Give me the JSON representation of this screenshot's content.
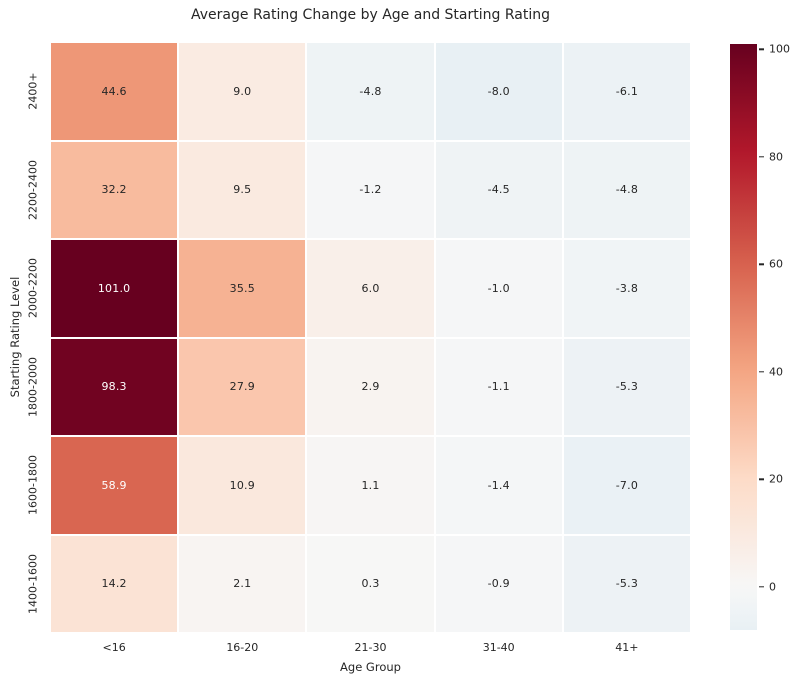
{
  "chart_data": {
    "type": "heatmap",
    "title": "Average Rating Change by Age and Starting Rating",
    "xlabel": "Age Group",
    "ylabel": "Starting Rating Level",
    "x_categories": [
      "<16",
      "16-20",
      "21-30",
      "31-40",
      "41+"
    ],
    "y_categories": [
      "2400+",
      "2200-2400",
      "2000-2200",
      "1800-2000",
      "1600-1800",
      "1400-1600"
    ],
    "values": [
      [
        44.6,
        9.0,
        -4.8,
        -8.0,
        -6.1
      ],
      [
        32.2,
        9.5,
        -1.2,
        -4.5,
        -4.8
      ],
      [
        101.0,
        35.5,
        6.0,
        -1.0,
        -3.8
      ],
      [
        98.3,
        27.9,
        2.9,
        -1.1,
        -5.3
      ],
      [
        58.9,
        10.9,
        1.1,
        -1.4,
        -7.0
      ],
      [
        14.2,
        2.1,
        0.3,
        -0.9,
        -5.3
      ]
    ],
    "vmin": -8.0,
    "vmax": 101.0,
    "center": 0,
    "annot_decimals": 1,
    "grid_gap_color": "#ffffff",
    "colorbar": {
      "ticks": [
        0,
        20,
        40,
        60,
        80,
        100
      ],
      "position": "right"
    },
    "colormap": {
      "name": "RdBu_r",
      "stops": [
        "#053061",
        "#2166ac",
        "#4393c3",
        "#92c5de",
        "#d1e5f0",
        "#f7f7f7",
        "#fddbc7",
        "#f4a582",
        "#d6604d",
        "#b2182b",
        "#67001f"
      ]
    },
    "annot_text_colors": {
      "on_light": "#262626",
      "on_dark": "#ffffff"
    },
    "background": "#ffffff"
  }
}
